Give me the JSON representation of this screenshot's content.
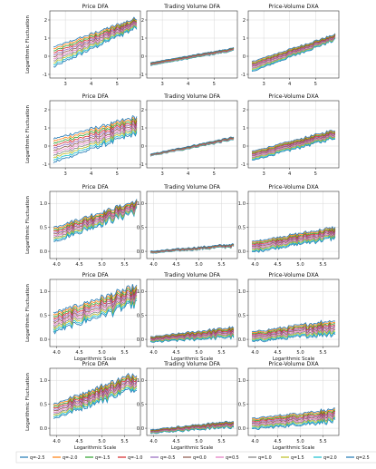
{
  "chart_data": {
    "type": "line",
    "ylabel": "Logarithmic Fluctuation",
    "xlabel": "Logarithmic Scale",
    "grid": true,
    "legend_placement": "bottom",
    "legend": [
      {
        "name": "q=-2.5",
        "color": "#1f77b4"
      },
      {
        "name": "q=-2.0",
        "color": "#ff7f0e"
      },
      {
        "name": "q=-1.5",
        "color": "#2ca02c"
      },
      {
        "name": "q=-1.0",
        "color": "#d62728"
      },
      {
        "name": "q=-0.5",
        "color": "#9467bd"
      },
      {
        "name": "q=0.0",
        "color": "#8c564b"
      },
      {
        "name": "q=0.5",
        "color": "#e377c2"
      },
      {
        "name": "q=1.0",
        "color": "#7f7f7f"
      },
      {
        "name": "q=1.5",
        "color": "#bcbd22"
      },
      {
        "name": "q=2.0",
        "color": "#17becf"
      },
      {
        "name": "q=2.5",
        "color": "#1f77b4"
      }
    ],
    "columns": [
      "Price DFA",
      "Trading Volume DFA",
      "Price-Volume DXA"
    ],
    "rows": [
      {
        "ylim": [
          -1.2,
          2.5
        ],
        "yticks": [
          -1,
          0,
          1,
          2
        ],
        "ytick_labels": [
          "-1",
          "0",
          "1",
          "2"
        ],
        "xlim": [
          2.4,
          5.9
        ],
        "xticks": [
          3,
          4,
          5
        ],
        "xtick_labels": [
          "3",
          "4",
          "5"
        ],
        "panels": [
          {
            "title": "Price DFA",
            "start": [
              0.5,
              -0.6
            ],
            "end": [
              2.1,
              1.6
            ],
            "noise": 0.1
          },
          {
            "title": "Trading Volume DFA",
            "start": [
              -0.35,
              -0.5
            ],
            "end": [
              0.45,
              0.3
            ],
            "noise": 0.03
          },
          {
            "title": "Price-Volume DXA",
            "start": [
              -0.3,
              -0.85
            ],
            "end": [
              1.2,
              0.9
            ],
            "noise": 0.06
          }
        ]
      },
      {
        "ylim": [
          -1.2,
          2.5
        ],
        "yticks": [
          -1,
          0,
          1,
          2
        ],
        "ytick_labels": [
          "-1",
          "0",
          "1",
          "2"
        ],
        "xlim": [
          2.4,
          5.9
        ],
        "xticks": [
          3,
          4,
          5
        ],
        "xtick_labels": [
          "3",
          "4",
          "5"
        ],
        "panels": [
          {
            "title": "Price DFA",
            "start": [
              0.4,
              -0.9
            ],
            "end": [
              1.6,
              0.7
            ],
            "noise": 0.12
          },
          {
            "title": "Trading Volume DFA",
            "start": [
              -0.45,
              -0.55
            ],
            "end": [
              0.5,
              0.35
            ],
            "noise": 0.04
          },
          {
            "title": "Price-Volume DXA",
            "start": [
              -0.3,
              -0.8
            ],
            "end": [
              0.9,
              0.45
            ],
            "noise": 0.07
          }
        ]
      },
      {
        "ylim": [
          -0.15,
          1.25
        ],
        "yticks": [
          0,
          0.5,
          1
        ],
        "ytick_labels": [
          "0.0",
          "0.5",
          "1.0"
        ],
        "xlim": [
          3.85,
          5.85
        ],
        "xticks": [
          4,
          4.5,
          5,
          5.5
        ],
        "xtick_labels": [
          "4.0",
          "4.5",
          "5.0",
          "5.5"
        ],
        "panels": [
          {
            "title": "Price DFA",
            "start": [
              0.5,
              0.2
            ],
            "end": [
              1.05,
              0.85
            ],
            "noise": 0.06
          },
          {
            "title": "Trading Volume DFA",
            "start": [
              0.0,
              -0.04
            ],
            "end": [
              0.15,
              0.1
            ],
            "noise": 0.02
          },
          {
            "title": "Price-Volume DXA",
            "start": [
              0.2,
              -0.02
            ],
            "end": [
              0.5,
              0.28
            ],
            "noise": 0.035
          }
        ]
      },
      {
        "ylim": [
          -0.15,
          1.25
        ],
        "yticks": [
          0,
          0.5,
          1
        ],
        "ytick_labels": [
          "0.0",
          "0.5",
          "1.0"
        ],
        "xlim": [
          3.85,
          5.85
        ],
        "xticks": [
          4,
          4.5,
          5,
          5.5
        ],
        "xtick_labels": [
          "4.0",
          "4.5",
          "5.0",
          "5.5"
        ],
        "panels": [
          {
            "title": "Price DFA",
            "start": [
              0.55,
              0.15
            ],
            "end": [
              1.1,
              0.75
            ],
            "noise": 0.07
          },
          {
            "title": "Trading Volume DFA",
            "start": [
              0.05,
              -0.06
            ],
            "end": [
              0.25,
              0.05
            ],
            "noise": 0.03
          },
          {
            "title": "Price-Volume DXA",
            "start": [
              0.15,
              -0.05
            ],
            "end": [
              0.4,
              0.12
            ],
            "noise": 0.04
          }
        ]
      },
      {
        "ylim": [
          -0.15,
          1.25
        ],
        "yticks": [
          0,
          0.5,
          1
        ],
        "ytick_labels": [
          "0.0",
          "0.5",
          "1.0"
        ],
        "xlim": [
          3.85,
          5.85
        ],
        "xticks": [
          4,
          4.5,
          5,
          5.5
        ],
        "xtick_labels": [
          "4.0",
          "4.5",
          "5.0",
          "5.5"
        ],
        "panels": [
          {
            "title": "Price DFA",
            "start": [
              0.5,
              0.2
            ],
            "end": [
              1.15,
              0.85
            ],
            "noise": 0.06
          },
          {
            "title": "Trading Volume DFA",
            "start": [
              -0.03,
              -0.1
            ],
            "end": [
              0.15,
              0.03
            ],
            "noise": 0.025
          },
          {
            "title": "Price-Volume DXA",
            "start": [
              0.2,
              -0.02
            ],
            "end": [
              0.4,
              0.15
            ],
            "noise": 0.035
          }
        ]
      }
    ]
  }
}
